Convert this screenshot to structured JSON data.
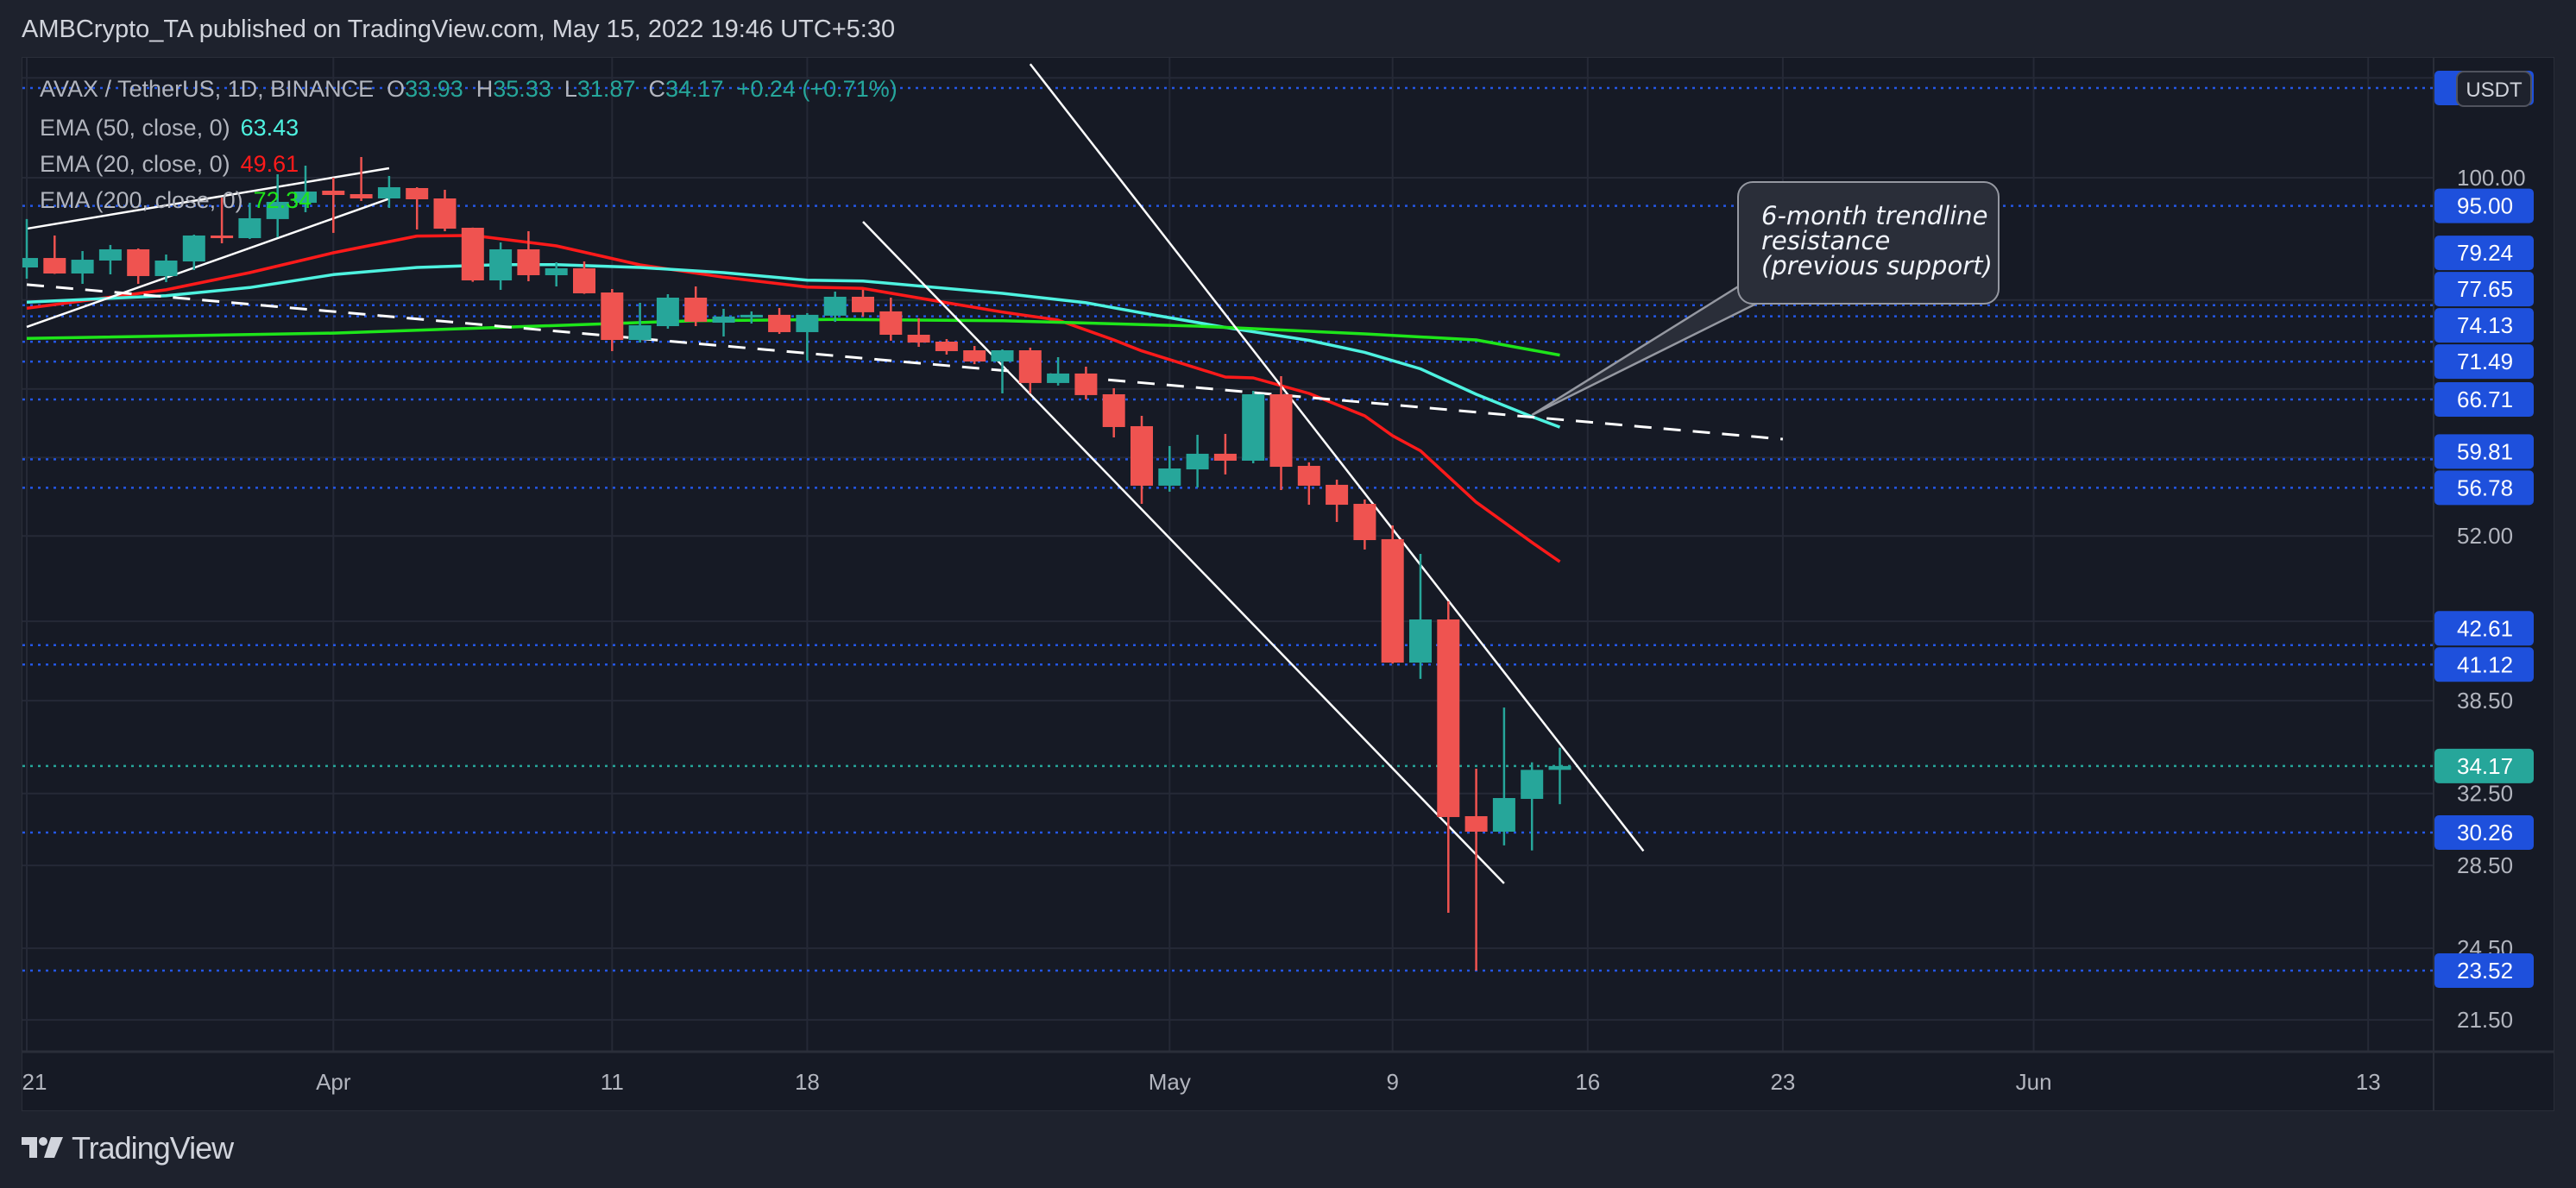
{
  "header": {
    "published": "AMBCrypto_TA published on TradingView.com, May 15, 2022 19:46 UTC+5:30"
  },
  "legend": {
    "symbol": "AVAX / TetherUS, 1D, BINANCE",
    "o_label": "O",
    "o": "33.93",
    "h_label": "H",
    "h": "35.33",
    "l_label": "L",
    "l": "31.87",
    "c_label": "C",
    "c": "34.17",
    "change": "+0.24 (+0.71%)",
    "emas": [
      {
        "label": "EMA (50, close, 0)",
        "value": "63.43",
        "color": "#4ef2e0"
      },
      {
        "label": "EMA (20, close, 0)",
        "value": "49.61",
        "color": "#ff1a1a"
      },
      {
        "label": "EMA (200, close, 0)",
        "value": "72.34",
        "color": "#1ee51a"
      }
    ]
  },
  "colors": {
    "up": "#26a69a",
    "down": "#ef5350",
    "level_line": "#2457e6",
    "level_label": "#1e50dc",
    "last_price": "#26a69a",
    "grid": "#252936",
    "trendline": "#ffffff",
    "background": "#161a25"
  },
  "price_axis": {
    "currency": "USDT",
    "scale": "log",
    "ticks": [
      {
        "value": 100,
        "label": "100.00"
      },
      {
        "value": 52,
        "label": "52.00"
      },
      {
        "value": 38.5,
        "label": "38.50"
      },
      {
        "value": 32.5,
        "label": "32.50"
      },
      {
        "value": 28.5,
        "label": "28.50"
      },
      {
        "value": 24.5,
        "label": "24.50"
      },
      {
        "value": 21.5,
        "label": "21.50"
      }
    ],
    "hidden_grid_values": [
      120,
      80,
      68,
      60,
      44.5
    ]
  },
  "time_axis": {
    "labels": [
      {
        "text": "21",
        "date": "2022-03-21"
      },
      {
        "text": "Apr",
        "date": "2022-04-01"
      },
      {
        "text": "11",
        "date": "2022-04-11"
      },
      {
        "text": "18",
        "date": "2022-04-18"
      },
      {
        "text": "May",
        "date": "2022-05-01"
      },
      {
        "text": "9",
        "date": "2022-05-09"
      },
      {
        "text": "16",
        "date": "2022-05-16"
      },
      {
        "text": "23",
        "date": "2022-05-23"
      },
      {
        "text": "Jun",
        "date": "2022-06-01"
      },
      {
        "text": "13",
        "date": "2022-06-13"
      }
    ]
  },
  "annotation": {
    "lines": [
      "6-month trendline",
      "resistance",
      "(previous support)"
    ],
    "anchor": {
      "date": "2022-05-14",
      "price": 64.85
    }
  },
  "footer": {
    "brand": "TradingView"
  },
  "chart_data": {
    "type": "candlestick",
    "title": "AVAX / TetherUS, 1D, BINANCE",
    "y_scale": "log",
    "ylim": [
      20.28,
      124.47
    ],
    "grid": true,
    "candle_fields": [
      "date",
      "open",
      "high",
      "low",
      "close"
    ],
    "candles": [
      [
        "2022-03-21",
        84.89,
        92.73,
        83.17,
        86.37
      ],
      [
        "2022-03-22",
        86.37,
        89.99,
        83.9,
        83.96
      ],
      [
        "2022-03-23",
        83.96,
        87.47,
        82.39,
        86.1
      ],
      [
        "2022-03-24",
        85.97,
        88.45,
        83.83,
        87.75
      ],
      [
        "2022-03-25",
        87.75,
        87.89,
        82.39,
        83.57
      ],
      [
        "2022-03-26",
        83.57,
        86.92,
        82.65,
        85.97
      ],
      [
        "2022-03-27",
        85.83,
        90.13,
        84.49,
        89.99
      ],
      [
        "2022-03-28",
        89.99,
        96.44,
        88.72,
        89.56
      ],
      [
        "2022-03-29",
        89.56,
        95.53,
        89.42,
        92.87
      ],
      [
        "2022-03-30",
        92.73,
        100.63,
        89.71,
        95.69
      ],
      [
        "2022-03-31",
        95.53,
        102.23,
        93.9,
        97.51
      ],
      [
        "2022-04-01",
        97.66,
        100.0,
        90.42,
        96.9
      ],
      [
        "2022-04-02",
        97.05,
        103.85,
        95.84,
        96.29
      ],
      [
        "2022-04-03",
        96.29,
        100.32,
        94.64,
        98.28
      ],
      [
        "2022-04-04",
        98.13,
        98.28,
        90.99,
        96.14
      ],
      [
        "2022-04-05",
        96.29,
        97.82,
        90.7,
        91.12
      ],
      [
        "2022-04-06",
        91.27,
        91.3,
        82.7,
        82.91
      ],
      [
        "2022-04-07",
        82.91,
        88.86,
        81.49,
        87.75
      ],
      [
        "2022-04-08",
        87.75,
        90.7,
        82.78,
        83.7
      ],
      [
        "2022-04-09",
        83.7,
        85.7,
        82.0,
        84.76
      ],
      [
        "2022-04-10",
        84.76,
        85.83,
        80.9,
        80.98
      ],
      [
        "2022-04-11",
        81.1,
        81.62,
        72.87,
        74.37
      ],
      [
        "2022-04-12",
        74.37,
        79.59,
        74.02,
        76.39
      ],
      [
        "2022-04-13",
        76.27,
        80.85,
        75.91,
        80.34
      ],
      [
        "2022-04-14",
        80.34,
        82.0,
        76.27,
        76.87
      ],
      [
        "2022-04-15",
        76.75,
        78.72,
        74.84,
        77.62
      ],
      [
        "2022-04-16",
        77.5,
        78.35,
        76.63,
        77.86
      ],
      [
        "2022-04-17",
        77.86,
        78.84,
        75.2,
        75.44
      ],
      [
        "2022-04-18",
        75.44,
        78.1,
        71.61,
        77.86
      ],
      [
        "2022-04-19",
        77.74,
        81.23,
        76.87,
        80.47
      ],
      [
        "2022-04-20",
        80.47,
        81.49,
        77.62,
        78.23
      ],
      [
        "2022-04-21",
        78.35,
        80.34,
        74.26,
        75.08
      ],
      [
        "2022-04-22",
        75.08,
        77.38,
        73.44,
        74.02
      ],
      [
        "2022-04-23",
        74.14,
        74.49,
        72.41,
        72.87
      ],
      [
        "2022-04-24",
        72.98,
        73.56,
        71.16,
        71.5
      ],
      [
        "2022-04-25",
        71.5,
        73.1,
        67.46,
        72.98
      ],
      [
        "2022-04-26",
        72.98,
        73.33,
        67.46,
        68.75
      ],
      [
        "2022-04-27",
        68.75,
        72.07,
        68.43,
        69.95
      ],
      [
        "2022-04-28",
        69.95,
        70.83,
        66.72,
        67.25
      ],
      [
        "2022-04-29",
        67.35,
        68.1,
        62.25,
        63.44
      ],
      [
        "2022-04-30",
        63.54,
        64.75,
        55.14,
        57.0
      ],
      [
        "2022-05-01",
        57.0,
        61.28,
        56.38,
        58.82
      ],
      [
        "2022-05-02",
        58.72,
        62.55,
        56.82,
        60.42
      ],
      [
        "2022-05-03",
        60.42,
        62.65,
        58.18,
        59.66
      ],
      [
        "2022-05-04",
        59.66,
        67.78,
        59.38,
        67.35
      ],
      [
        "2022-05-05",
        67.35,
        69.62,
        56.55,
        59.0
      ],
      [
        "2022-05-06",
        59.1,
        59.48,
        55.05,
        57.0
      ],
      [
        "2022-05-07",
        57.09,
        57.63,
        53.35,
        55.05
      ],
      [
        "2022-05-08",
        55.14,
        55.58,
        50.73,
        51.61
      ],
      [
        "2022-05-09",
        51.7,
        53.01,
        41.2,
        41.27
      ],
      [
        "2022-05-10",
        41.27,
        50.33,
        40.06,
        44.65
      ],
      [
        "2022-05-11",
        44.65,
        46.15,
        26.14,
        31.13
      ],
      [
        "2022-05-12",
        31.18,
        34.0,
        23.52,
        30.31
      ],
      [
        "2022-05-13",
        30.31,
        38.02,
        29.56,
        32.23
      ],
      [
        "2022-05-14",
        32.18,
        34.4,
        29.29,
        33.93
      ],
      [
        "2022-05-15",
        33.93,
        35.33,
        31.87,
        34.17
      ]
    ],
    "ema_series": [
      {
        "name": "EMA (20, close, 0)",
        "color": "#ff1a1a",
        "points": [
          [
            "2022-03-21",
            78.8
          ],
          [
            "2022-03-26",
            81.5
          ],
          [
            "2022-03-29",
            84.1
          ],
          [
            "2022-04-01",
            87.2
          ],
          [
            "2022-04-04",
            89.9
          ],
          [
            "2022-04-06",
            90.0
          ],
          [
            "2022-04-09",
            88.3
          ],
          [
            "2022-04-12",
            85.3
          ],
          [
            "2022-04-15",
            83.4
          ],
          [
            "2022-04-18",
            81.9
          ],
          [
            "2022-04-20",
            81.7
          ],
          [
            "2022-04-23",
            79.6
          ],
          [
            "2022-04-25",
            78.25
          ],
          [
            "2022-04-27",
            77.12
          ],
          [
            "2022-04-29",
            74.37
          ],
          [
            "2022-04-30",
            72.9
          ],
          [
            "2022-05-03",
            69.5
          ],
          [
            "2022-05-04",
            69.4
          ],
          [
            "2022-05-06",
            67.46
          ],
          [
            "2022-05-08",
            64.75
          ],
          [
            "2022-05-09",
            62.44
          ],
          [
            "2022-05-10",
            60.75
          ],
          [
            "2022-05-12",
            55.31
          ],
          [
            "2022-05-14",
            51.39
          ],
          [
            "2022-05-15",
            49.61
          ]
        ]
      },
      {
        "name": "EMA (50, close, 0)",
        "color": "#4ef2e0",
        "points": [
          [
            "2022-03-21",
            79.68
          ],
          [
            "2022-03-26",
            80.63
          ],
          [
            "2022-03-29",
            81.83
          ],
          [
            "2022-04-01",
            83.79
          ],
          [
            "2022-04-04",
            84.89
          ],
          [
            "2022-04-07",
            85.33
          ],
          [
            "2022-04-09",
            85.33
          ],
          [
            "2022-04-12",
            84.89
          ],
          [
            "2022-04-15",
            84.1
          ],
          [
            "2022-04-18",
            82.95
          ],
          [
            "2022-04-20",
            82.82
          ],
          [
            "2022-04-25",
            80.98
          ],
          [
            "2022-04-28",
            79.6
          ],
          [
            "2022-04-30",
            78.15
          ],
          [
            "2022-05-03",
            76.09
          ],
          [
            "2022-05-06",
            74.31
          ],
          [
            "2022-05-08",
            72.71
          ],
          [
            "2022-05-10",
            70.55
          ],
          [
            "2022-05-12",
            67.35
          ],
          [
            "2022-05-14",
            64.65
          ],
          [
            "2022-05-15",
            63.43
          ]
        ]
      },
      {
        "name": "EMA (200, close, 0)",
        "color": "#1ee51a",
        "points": [
          [
            "2022-03-21",
            74.57
          ],
          [
            "2022-04-01",
            75.31
          ],
          [
            "2022-04-14",
            77.03
          ],
          [
            "2022-04-19",
            77.2
          ],
          [
            "2022-04-25",
            77.03
          ],
          [
            "2022-05-02",
            76.27
          ],
          [
            "2022-05-08",
            75.2
          ],
          [
            "2022-05-12",
            74.37
          ],
          [
            "2022-05-15",
            72.34
          ]
        ]
      }
    ],
    "levels": [
      {
        "price": 117.8,
        "label": ""
      },
      {
        "price": 95.0,
        "label": "95.00"
      },
      {
        "price": 79.24,
        "label": "79.24"
      },
      {
        "price": 77.65,
        "label": "77.65"
      },
      {
        "price": 74.13,
        "label": "74.13"
      },
      {
        "price": 71.49,
        "label": "71.49"
      },
      {
        "price": 66.71,
        "label": "66.71"
      },
      {
        "price": 59.81,
        "label": "59.81"
      },
      {
        "price": 56.78,
        "label": "56.78"
      },
      {
        "price": 42.61,
        "label": "42.61"
      },
      {
        "price": 41.12,
        "label": "41.12"
      },
      {
        "price": 30.26,
        "label": "30.26"
      },
      {
        "price": 23.52,
        "label": "23.52"
      }
    ],
    "last_price": {
      "price": 34.17,
      "label": "34.17"
    },
    "trendlines": [
      {
        "name": "rising-wedge-upper",
        "style": "solid",
        "from": [
          "2022-03-21",
          91.12
        ],
        "to": [
          "2022-04-03",
          101.75
        ]
      },
      {
        "name": "rising-wedge-lower",
        "style": "solid",
        "from": [
          "2022-03-21",
          76.16
        ],
        "to": [
          "2022-04-03",
          96.24
        ]
      },
      {
        "name": "six-month-trendline",
        "style": "dashed",
        "from": [
          "2022-03-21",
          82.28
        ],
        "to": [
          "2022-05-23",
          62.05
        ]
      },
      {
        "name": "descending-channel-lower",
        "style": "solid",
        "from": [
          "2022-04-20",
          92.28
        ],
        "to": [
          "2022-05-13",
          27.58
        ]
      },
      {
        "name": "descending-channel-upper",
        "style": "solid",
        "from": [
          "2022-04-26",
          123.05
        ],
        "to": [
          "2022-05-18",
          29.26
        ]
      }
    ]
  }
}
